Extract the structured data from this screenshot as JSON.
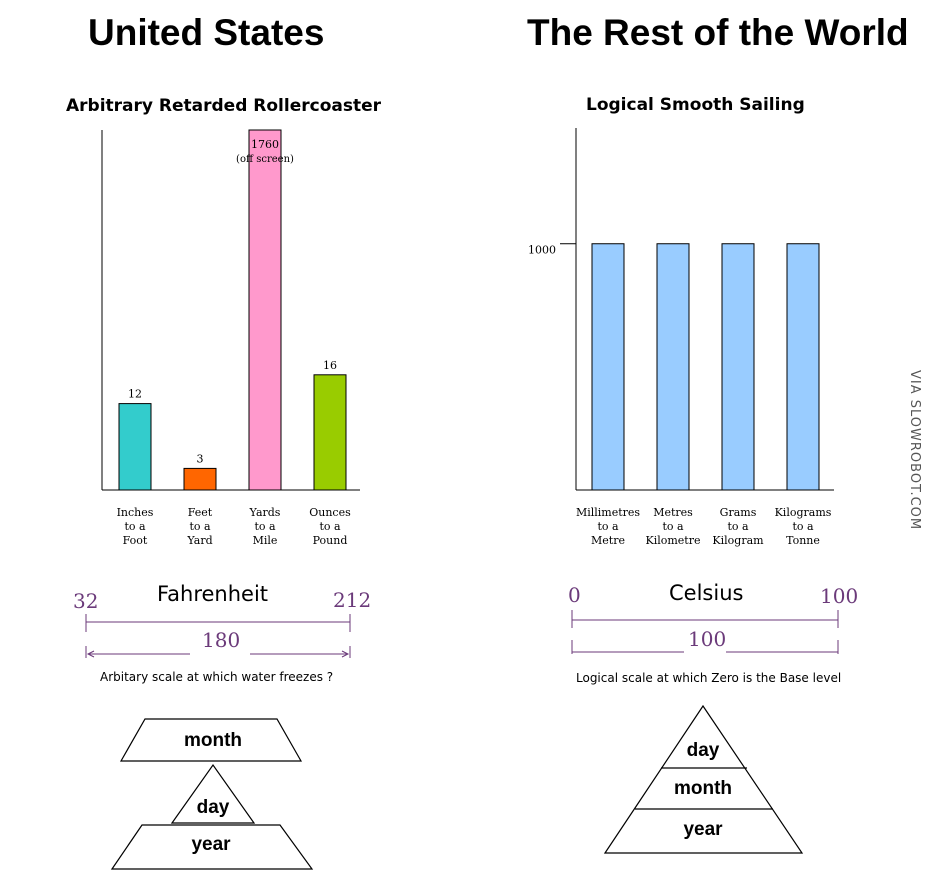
{
  "left": {
    "title": "United States",
    "chart_title": "Arbitrary Retarded Rollercoaster",
    "scale": {
      "name": "Fahrenheit",
      "low": "32",
      "high": "212",
      "span": "180",
      "caption": "Arbitary scale at which water freezes ?"
    },
    "date_order": {
      "top": "month",
      "middle": "day",
      "bottom": "year"
    }
  },
  "right": {
    "title": "The Rest of the World",
    "chart_title": "Logical Smooth Sailing",
    "scale": {
      "name": "Celsius",
      "low": "0",
      "high": "100",
      "span": "100",
      "caption": "Logical scale at which Zero is the Base level"
    },
    "date_order": {
      "top": "day",
      "middle": "month",
      "bottom": "year"
    }
  },
  "watermark": "VIA SLOWROBOT.COM",
  "chart_data": [
    {
      "type": "bar",
      "title": "Arbitrary Retarded Rollercoaster",
      "categories": [
        [
          "Inches",
          "to a",
          "Foot"
        ],
        [
          "Feet",
          "to a",
          "Yard"
        ],
        [
          "Yards",
          "to a",
          "Mile"
        ],
        [
          "Ounces",
          "to a",
          "Pound"
        ]
      ],
      "values": [
        12,
        3,
        1760,
        16
      ],
      "data_labels": [
        "12",
        "3",
        "1760",
        "16"
      ],
      "annotation": "(off screen)",
      "colors": [
        "#33cccc",
        "#ff6600",
        "#ff99cc",
        "#99cc00"
      ],
      "ylim": [
        0,
        50
      ]
    },
    {
      "type": "bar",
      "title": "Logical Smooth Sailing",
      "categories": [
        [
          "Millimetres",
          "to a",
          "Metre"
        ],
        [
          "Metres",
          "to a",
          "Kilometre"
        ],
        [
          "Grams",
          "to a",
          "Kilogram"
        ],
        [
          "Kilograms",
          "to a",
          "Tonne"
        ]
      ],
      "values": [
        1000,
        1000,
        1000,
        1000
      ],
      "colors": [
        "#99ccff",
        "#99ccff",
        "#99ccff",
        "#99ccff"
      ],
      "yticks": [
        "1000"
      ],
      "ylim": [
        0,
        1470
      ]
    }
  ]
}
